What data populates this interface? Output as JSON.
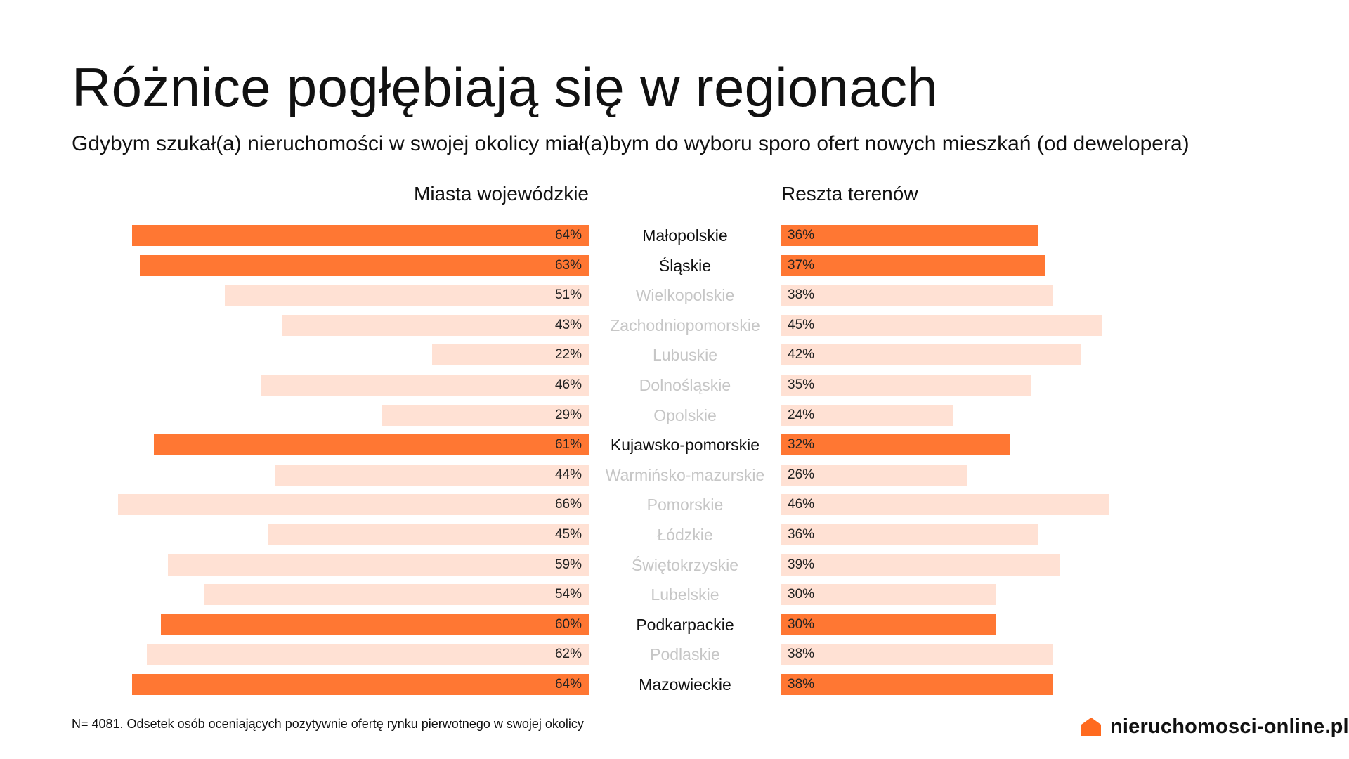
{
  "header": {
    "title": "Różnice pogłębiają się w regionach",
    "subtitle": "Gdybym szukał(a) nieruchomości w swojej okolicy miał(a)bym do wyboru sporo ofert nowych mieszkań (od dewelopera)"
  },
  "chart_data": {
    "type": "bar",
    "orientation": "horizontal-diverging",
    "columns": {
      "left": "Miasta wojewódzkie",
      "right": "Reszta terenów"
    },
    "categories": [
      "Małopolskie",
      "Śląskie",
      "Wielkopolskie",
      "Zachodniopomorskie",
      "Lubuskie",
      "Dolnośląskie",
      "Opolskie",
      "Kujawsko-pomorskie",
      "Warmińsko-mazurskie",
      "Pomorskie",
      "Łódzkie",
      "Świętokrzyskie",
      "Lubelskie",
      "Podkarpackie",
      "Podlaskie",
      "Mazowieckie"
    ],
    "highlighted": [
      "Małopolskie",
      "Śląskie",
      "Kujawsko-pomorskie",
      "Podkarpackie",
      "Mazowieckie"
    ],
    "series": [
      {
        "values": [
          64,
          63,
          51,
          43,
          22,
          46,
          29,
          61,
          44,
          66,
          45,
          59,
          54,
          60,
          62,
          64
        ]
      },
      {
        "values": [
          36,
          37,
          38,
          45,
          42,
          35,
          24,
          32,
          26,
          46,
          36,
          39,
          30,
          30,
          38,
          38
        ]
      }
    ],
    "labels": {
      "left": [
        "64%",
        "63%",
        "51%",
        "43%",
        "22%",
        "46%",
        "29%",
        "61%",
        "44%",
        "66%",
        "45%",
        "59%",
        "54%",
        "60%",
        "62%",
        "64%"
      ],
      "right": [
        "36%",
        "37%",
        "38%",
        "45%",
        "42%",
        "35%",
        "24%",
        "32%",
        "26%",
        "46%",
        "36%",
        "39%",
        "30%",
        "30%",
        "38%",
        "38%"
      ]
    },
    "colors": {
      "highlight": "#FF7733",
      "muted": "#FFE1D4"
    }
  },
  "footnote": "N= 4081. Odsetek osób oceniających pozytywnie ofertę rynku pierwotnego w swojej okolicy",
  "logo": {
    "text": "nieruchomosci-online.pl",
    "icon": "house-icon",
    "color": "#FF6A1F"
  }
}
